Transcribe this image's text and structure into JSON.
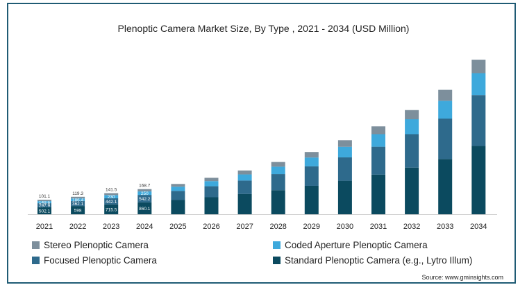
{
  "chart_data": {
    "type": "bar",
    "stacked": true,
    "title": "Plenoptic Camera Market Size, By Type , 2021 - 2034 (USD Million)",
    "categories": [
      "2021",
      "2022",
      "2023",
      "2024",
      "2025",
      "2026",
      "2027",
      "2028",
      "2029",
      "2030",
      "2031",
      "2032",
      "2033",
      "2034"
    ],
    "series": [
      {
        "name": "Standard Plenoptic Camera (e.g., Lytro Illum)",
        "color": "#0b4a5f",
        "values": [
          502.1,
          598,
          715.5,
          860.1,
          1030,
          1230,
          1470,
          1740,
          2060,
          2430,
          2870,
          3380,
          4000,
          4950
        ],
        "labels": [
          "502.1",
          "598",
          "715.5",
          "860.1",
          null,
          null,
          null,
          null,
          null,
          null,
          null,
          null,
          null,
          null
        ]
      },
      {
        "name": "Focused Plenoptic Camera",
        "color": "#2e6a8c",
        "values": [
          297.9,
          362.1,
          442.1,
          542.2,
          660,
          800,
          970,
          1170,
          1410,
          1690,
          2020,
          2420,
          2930,
          3680
        ],
        "labels": [
          "297.9",
          "362.1",
          "442.1",
          "542.2",
          null,
          null,
          null,
          null,
          null,
          null,
          null,
          null,
          null,
          null
        ]
      },
      {
        "name": "Coded Aperture Plenoptic Camera",
        "color": "#3ea9dc",
        "values": [
          149.6,
          186.4,
          230,
          250,
          305,
          370,
          445,
          535,
          640,
          765,
          910,
          1080,
          1290,
          1590
        ],
        "labels": [
          "149.6",
          "186.4",
          "230",
          "250",
          null,
          null,
          null,
          null,
          null,
          null,
          null,
          null,
          null,
          null
        ]
      },
      {
        "name": "Stereo Plenoptic Camera",
        "color": "#7d8f9c",
        "values": [
          101.1,
          119.3,
          141.5,
          168.7,
          200,
          240,
          285,
          340,
          400,
          475,
          565,
          665,
          790,
          975
        ],
        "labels": [
          "101.1",
          "119.3",
          "141.5",
          "168.7",
          null,
          null,
          null,
          null,
          null,
          null,
          null,
          null,
          null,
          null
        ]
      }
    ],
    "ylim": [
      0,
      11500
    ],
    "grid": false,
    "legend_position": "bottom"
  },
  "source": "Source: www.gminsights.com"
}
